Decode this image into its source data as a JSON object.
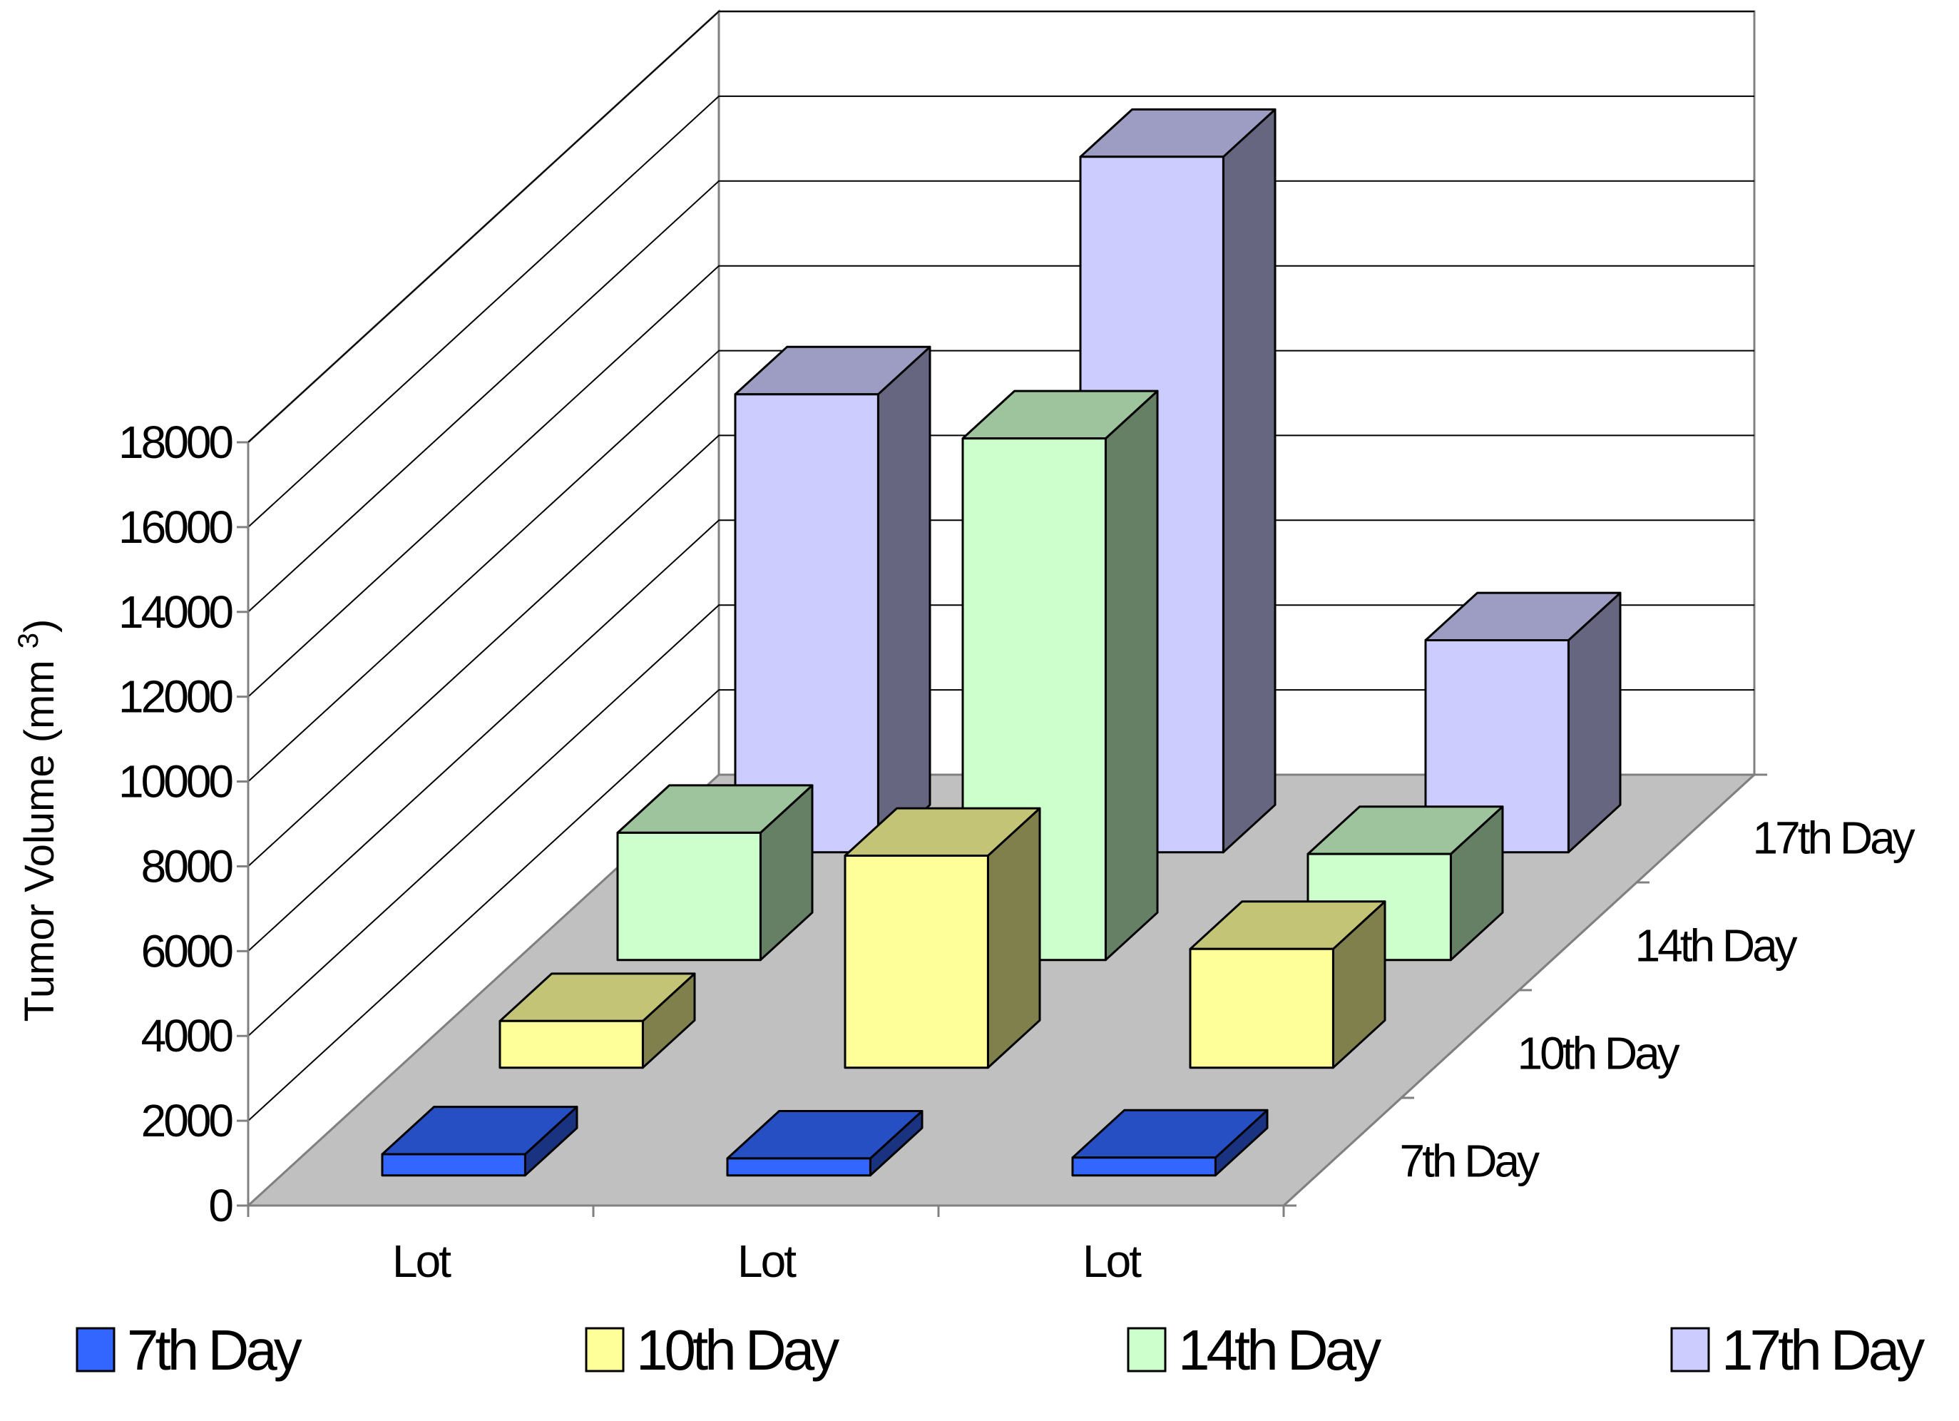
{
  "chart_data": {
    "type": "bar",
    "subtype": "3d-column",
    "title": "",
    "categories": [
      "Lot",
      "Lot",
      "Lot"
    ],
    "series": [
      {
        "name": "7th Day",
        "values": [
          500,
          400,
          420
        ],
        "color": "#3366FF"
      },
      {
        "name": "10th Day",
        "values": [
          1100,
          5000,
          2800
        ],
        "color": "#FFFF99"
      },
      {
        "name": "14th Day",
        "values": [
          3000,
          12300,
          2500
        ],
        "color": "#CCFFCC"
      },
      {
        "name": "17th Day",
        "values": [
          10800,
          16400,
          5000
        ],
        "color": "#CCCCFF"
      }
    ],
    "ylabel": "Tumor Volume (mm",
    "ylabel_superscript": "3",
    "ylabel_close": ")",
    "ylim": [
      0,
      18000
    ],
    "yticks": [
      "0",
      "2000",
      "4000",
      "6000",
      "8000",
      "10000",
      "12000",
      "14000",
      "16000",
      "18000"
    ],
    "depth_labels": [
      "7th Day",
      "10th Day",
      "14th Day",
      "17th Day"
    ],
    "legend": [
      "7th Day",
      "10th Day",
      "14th Day",
      "17th Day"
    ],
    "legend_position": "bottom",
    "grid": true,
    "floor_color": "#C0C0C0"
  }
}
